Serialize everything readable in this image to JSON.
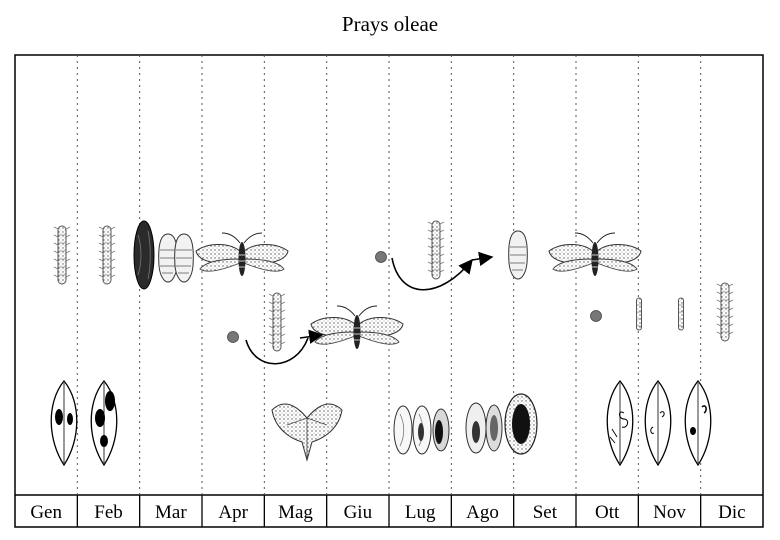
{
  "title": "Prays oleae",
  "months": [
    "Gen",
    "Feb",
    "Mar",
    "Apr",
    "Mag",
    "Giu",
    "Lug",
    "Ago",
    "Set",
    "Ott",
    "Nov",
    "Dic"
  ]
}
